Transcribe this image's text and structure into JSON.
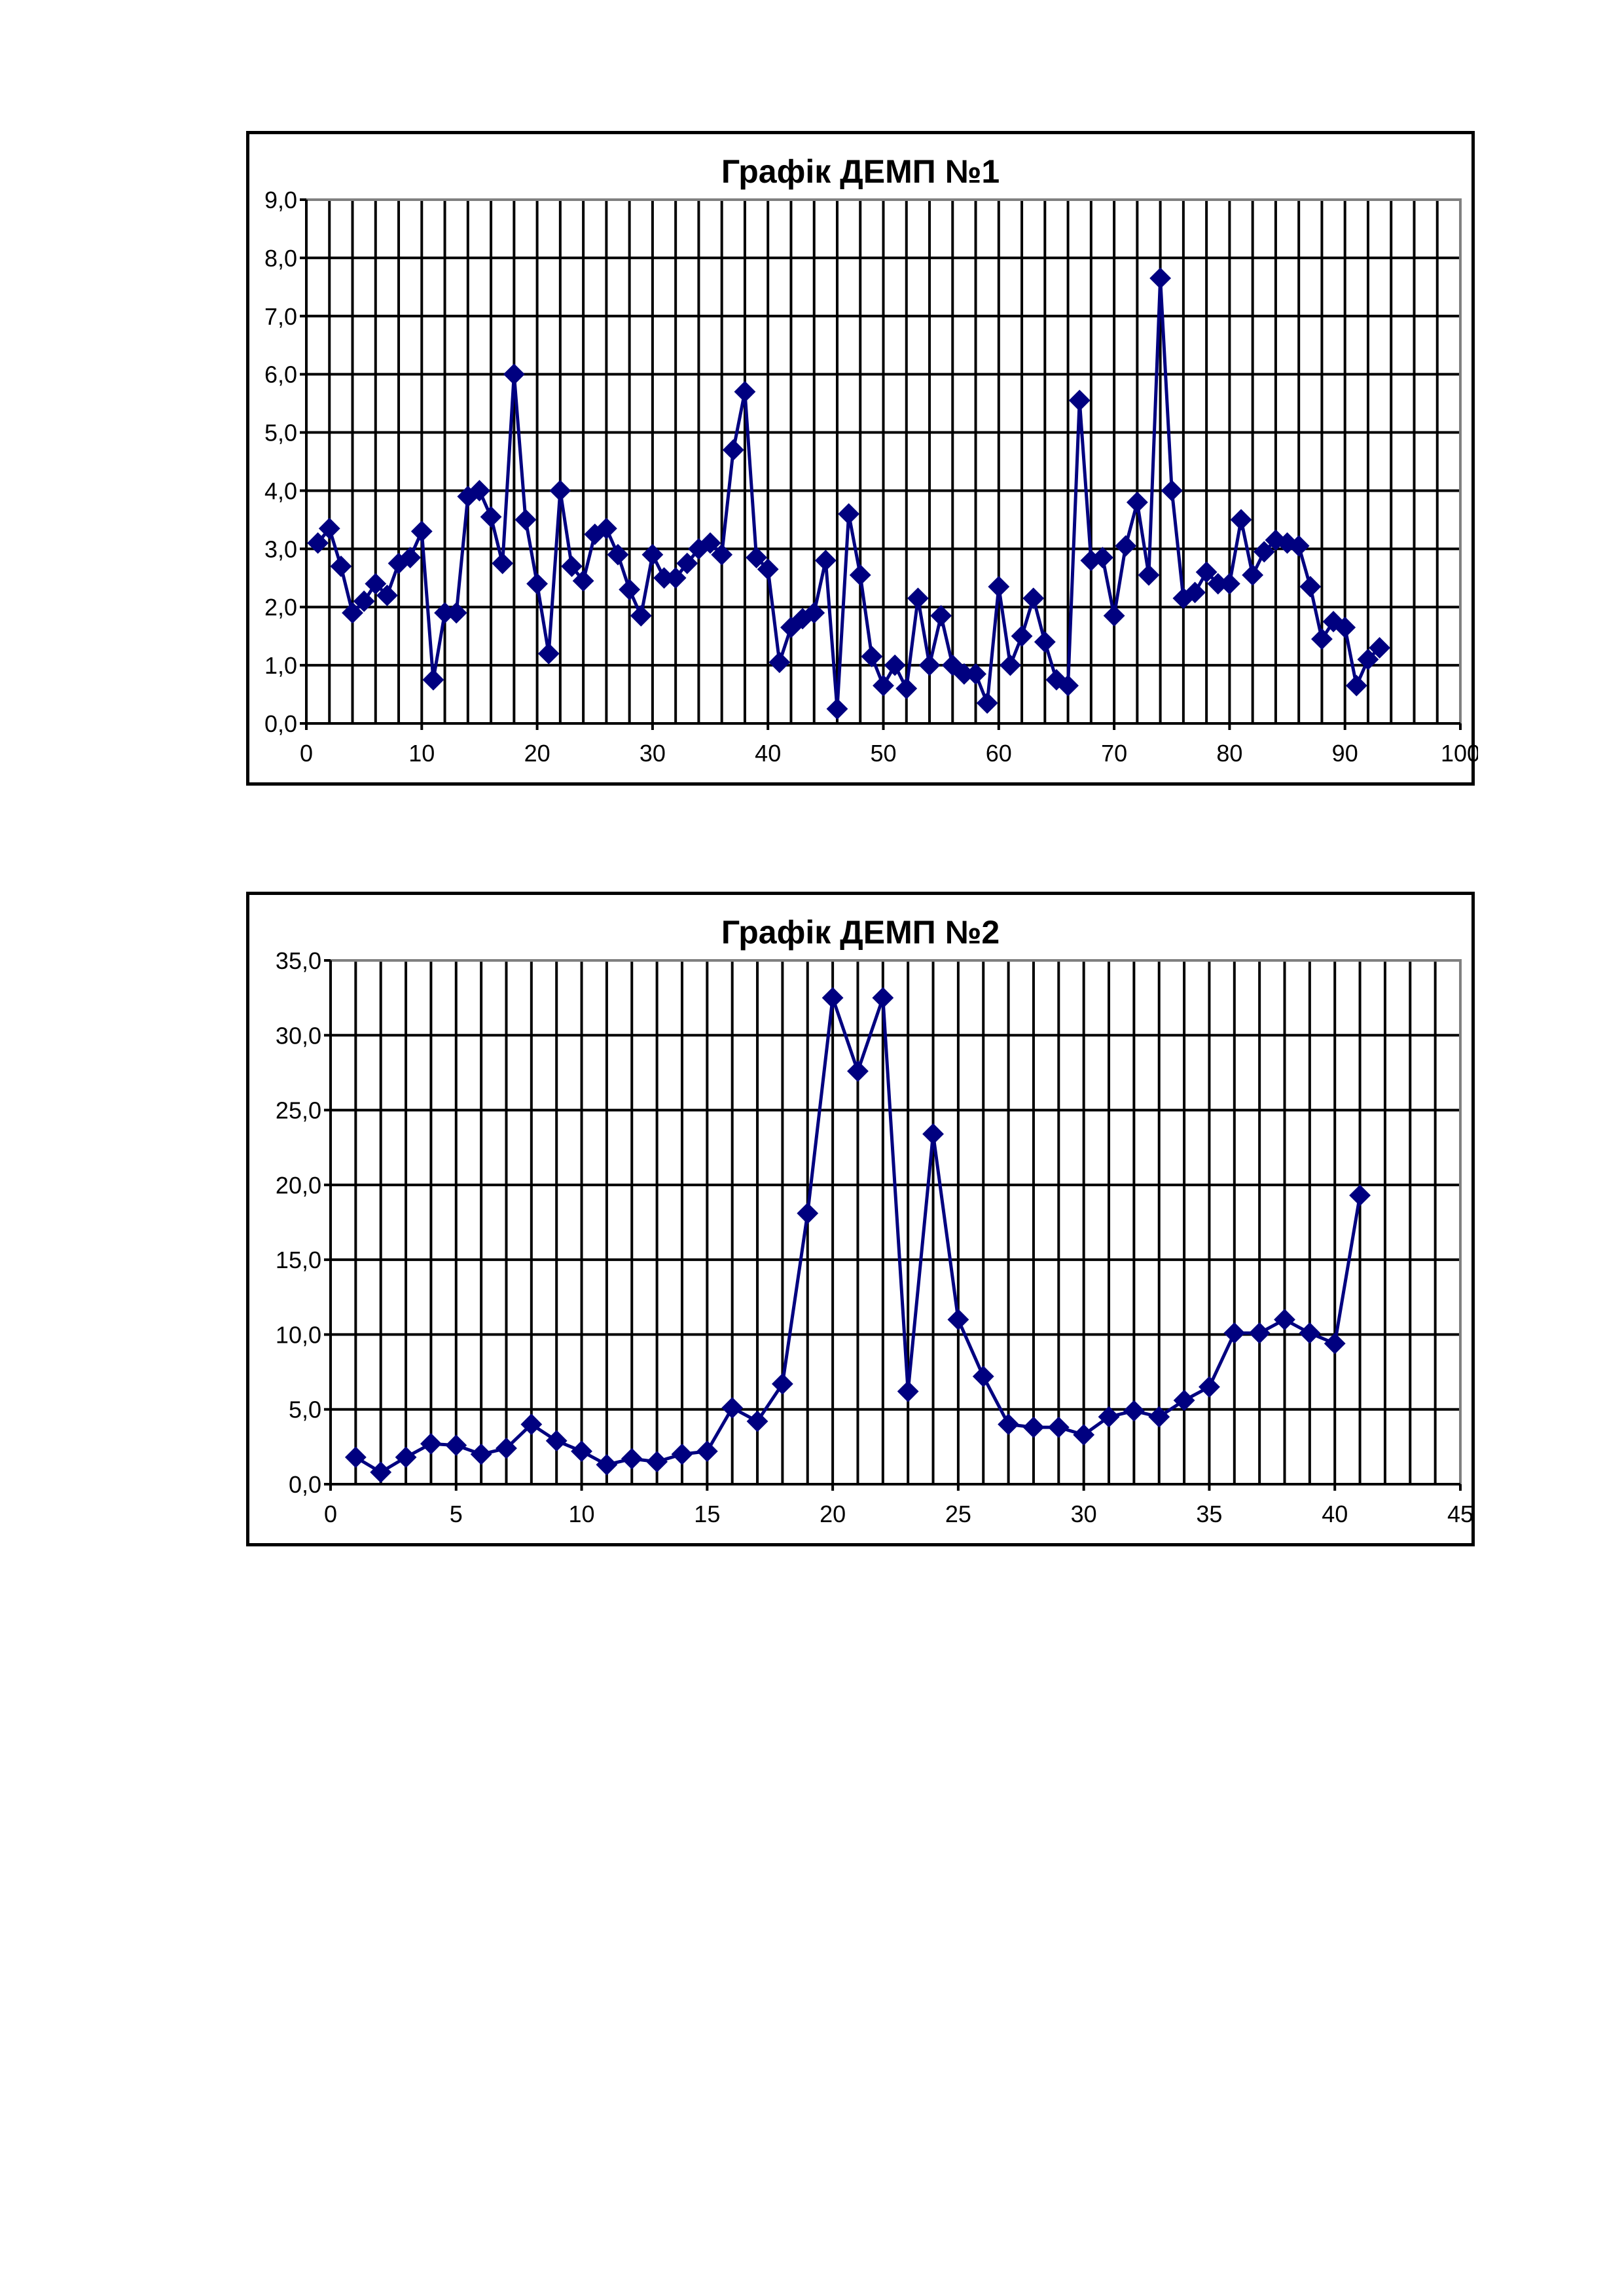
{
  "chart_data": [
    {
      "type": "line",
      "title": "Графік ДЕМП №1",
      "xlabel": "",
      "ylabel": "",
      "xlim": [
        0,
        100
      ],
      "ylim": [
        0,
        9
      ],
      "x_ticks": [
        0,
        10,
        20,
        30,
        40,
        50,
        60,
        70,
        80,
        90,
        100
      ],
      "x_tick_labels": [
        "0",
        "10",
        "20",
        "30",
        "40",
        "50",
        "60",
        "70",
        "80",
        "90",
        "100"
      ],
      "y_ticks": [
        0,
        1,
        2,
        3,
        4,
        5,
        6,
        7,
        8,
        9
      ],
      "y_tick_labels": [
        "0,0",
        "1,0",
        "2,0",
        "3,0",
        "4,0",
        "5,0",
        "6,0",
        "7,0",
        "8,0",
        "9,0"
      ],
      "x_minor_step": 2,
      "grid": true,
      "legend": "none",
      "marker": "diamond",
      "color": "#000080",
      "x": [
        1,
        2,
        3,
        4,
        5,
        6,
        7,
        8,
        9,
        10,
        11,
        12,
        13,
        14,
        15,
        16,
        17,
        18,
        19,
        20,
        21,
        22,
        23,
        24,
        25,
        26,
        27,
        28,
        29,
        30,
        31,
        32,
        33,
        34,
        35,
        36,
        37,
        38,
        39,
        40,
        41,
        42,
        43,
        44,
        45,
        46,
        47,
        48,
        49,
        50,
        51,
        52,
        53,
        54,
        55,
        56,
        57,
        58,
        59,
        60,
        61,
        62,
        63,
        64,
        65,
        66,
        67,
        68,
        69,
        70,
        71,
        72,
        73,
        74,
        75,
        76,
        77,
        78,
        79,
        80,
        81,
        82,
        83,
        84,
        85,
        86,
        87,
        88,
        89,
        90,
        91,
        92,
        93
      ],
      "values": [
        3.1,
        3.35,
        2.7,
        1.9,
        2.1,
        2.4,
        2.2,
        2.75,
        2.85,
        3.3,
        0.75,
        1.9,
        1.9,
        3.9,
        4.0,
        3.55,
        2.75,
        6.0,
        3.5,
        2.4,
        1.2,
        4.0,
        2.7,
        2.45,
        3.25,
        3.35,
        2.9,
        2.3,
        1.85,
        2.9,
        2.5,
        2.5,
        2.75,
        3.0,
        3.1,
        2.9,
        4.7,
        5.7,
        2.85,
        2.65,
        1.05,
        1.65,
        1.8,
        1.9,
        2.8,
        0.25,
        3.6,
        2.55,
        1.15,
        0.65,
        1.0,
        0.6,
        2.15,
        1.0,
        1.85,
        1.0,
        0.85,
        0.85,
        0.35,
        2.35,
        1.0,
        1.5,
        2.15,
        1.4,
        0.75,
        0.65,
        5.55,
        2.8,
        2.85,
        1.85,
        3.05,
        3.8,
        2.55,
        7.65,
        4.0,
        2.15,
        2.25,
        2.6,
        2.4,
        2.4,
        3.5,
        2.55,
        2.95,
        3.15,
        3.1,
        3.05,
        2.35,
        1.45,
        1.75,
        1.65,
        0.65,
        1.1,
        1.3
      ]
    },
    {
      "type": "line",
      "title": "Графік ДЕМП №2",
      "xlabel": "",
      "ylabel": "",
      "xlim": [
        0,
        45
      ],
      "ylim": [
        0,
        35
      ],
      "x_ticks": [
        0,
        5,
        10,
        15,
        20,
        25,
        30,
        35,
        40,
        45
      ],
      "x_tick_labels": [
        "0",
        "5",
        "10",
        "15",
        "20",
        "25",
        "30",
        "35",
        "40",
        "45"
      ],
      "y_ticks": [
        0,
        5,
        10,
        15,
        20,
        25,
        30,
        35
      ],
      "y_tick_labels": [
        "0,0",
        "5,0",
        "10,0",
        "15,0",
        "20,0",
        "25,0",
        "30,0",
        "35,0"
      ],
      "x_minor_step": 1,
      "grid": true,
      "legend": "none",
      "marker": "diamond",
      "color": "#000080",
      "x": [
        1,
        2,
        3,
        4,
        5,
        6,
        7,
        8,
        9,
        10,
        11,
        12,
        13,
        14,
        15,
        16,
        17,
        18,
        19,
        20,
        21,
        22,
        23,
        24,
        25,
        26,
        27,
        28,
        29,
        30,
        31,
        32,
        33,
        34,
        35,
        36,
        37,
        38,
        39,
        40,
        41
      ],
      "values": [
        1.8,
        0.8,
        1.8,
        2.7,
        2.6,
        2.0,
        2.4,
        4.0,
        2.9,
        2.2,
        1.3,
        1.7,
        1.5,
        2.0,
        2.2,
        5.1,
        4.2,
        6.7,
        18.1,
        32.5,
        27.6,
        32.5,
        6.2,
        23.4,
        11.0,
        7.2,
        4.0,
        3.8,
        3.8,
        3.3,
        4.5,
        4.9,
        4.5,
        5.6,
        6.5,
        10.1,
        10.1,
        11.0,
        10.1,
        9.4,
        19.3
      ]
    }
  ]
}
